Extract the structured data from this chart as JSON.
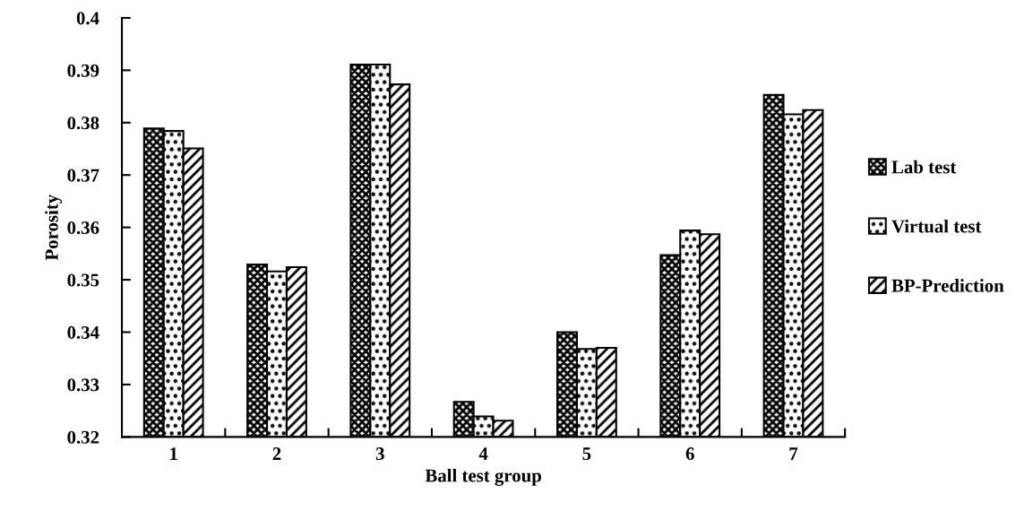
{
  "chart_data": {
    "type": "bar",
    "xlabel": "Ball test group",
    "ylabel": "Porosity",
    "categories": [
      "1",
      "2",
      "3",
      "4",
      "5",
      "6",
      "7"
    ],
    "series": [
      {
        "name": "Lab test",
        "color": "#000000",
        "values": [
          0.3789,
          0.3529,
          0.3911,
          0.3267,
          0.34,
          0.3547,
          0.3853
        ]
      },
      {
        "name": "Virtual test",
        "color": "#000000",
        "values": [
          0.3784,
          0.3516,
          0.3911,
          0.3239,
          0.3368,
          0.3594,
          0.3816
        ]
      },
      {
        "name": "BP-Prediction",
        "color": "#000000",
        "values": [
          0.3751,
          0.3524,
          0.3873,
          0.3231,
          0.337,
          0.3587,
          0.3824
        ]
      }
    ],
    "ylim": [
      0.32,
      0.4
    ],
    "yticks": [
      0.32,
      0.33,
      0.34,
      0.35,
      0.36,
      0.37,
      0.38,
      0.39,
      0.4
    ],
    "grid": false,
    "legend": "right"
  }
}
